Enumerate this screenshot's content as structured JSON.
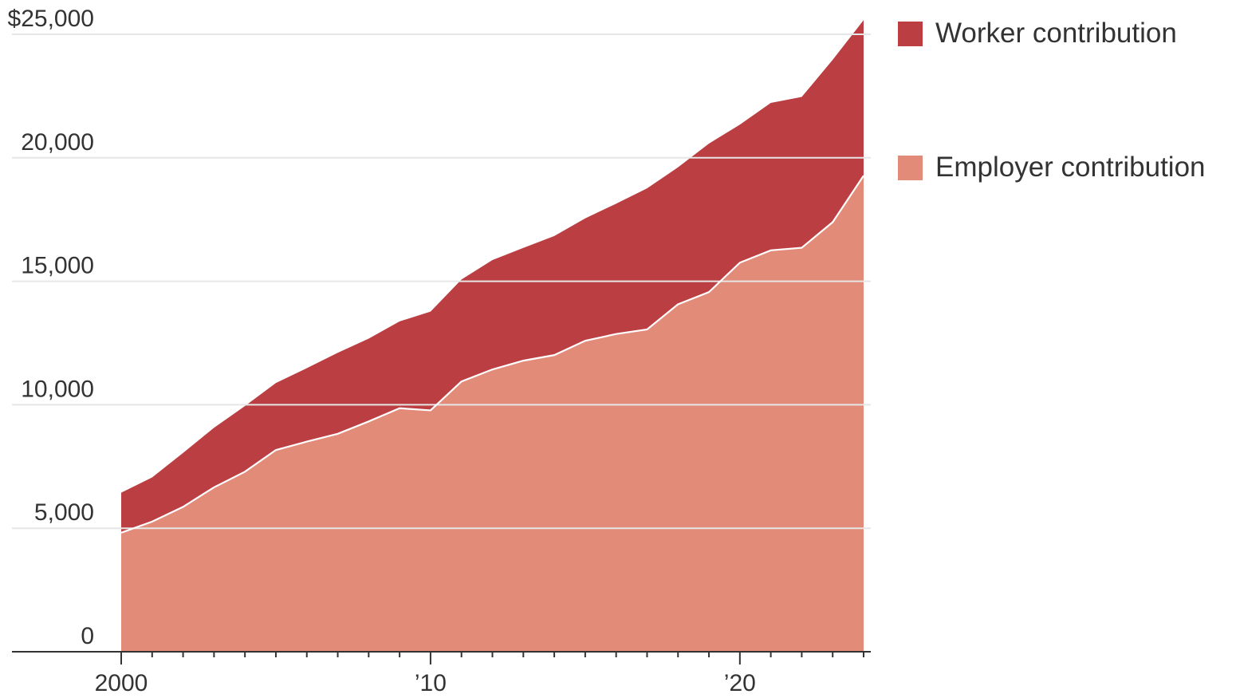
{
  "colors": {
    "worker": "#bb3f42",
    "employer": "#e38b79",
    "grid": "#e6e6e6",
    "axis": "#333333"
  },
  "legend": [
    {
      "label": "Worker contribution",
      "color": "#bb3f42"
    },
    {
      "label": "Employer contribution",
      "color": "#e38b79"
    }
  ],
  "chart_data": {
    "type": "area",
    "stacked": true,
    "x": [
      2000,
      2001,
      2002,
      2003,
      2004,
      2005,
      2006,
      2007,
      2008,
      2009,
      2010,
      2011,
      2012,
      2013,
      2014,
      2015,
      2016,
      2017,
      2018,
      2019,
      2020,
      2021,
      2022,
      2023,
      2024
    ],
    "series": [
      {
        "name": "Employer contribution",
        "values": [
          4819,
          5269,
          5866,
          6657,
          7289,
          8167,
          8508,
          8824,
          9325,
          9860,
          9773,
          10944,
          11429,
          11786,
          12011,
          12591,
          12865,
          13049,
          14069,
          14561,
          15754,
          16253,
          16357,
          17393,
          19276
        ]
      },
      {
        "name": "Worker contribution",
        "values": [
          1619,
          1787,
          2185,
          2412,
          2661,
          2713,
          2973,
          3282,
          3354,
          3515,
          3997,
          4129,
          4430,
          4565,
          4823,
          4955,
          5277,
          5714,
          5547,
          6015,
          5588,
          5969,
          6106,
          6575,
          6296
        ]
      }
    ],
    "y_tick_labels": [
      "0",
      "5,000",
      "10,000",
      "15,000",
      "20,000",
      "$25,000"
    ],
    "y_ticks": [
      0,
      5000,
      10000,
      15000,
      20000,
      25000
    ],
    "x_tick_labels": [
      "2000",
      "’10",
      "’20"
    ],
    "x_ticks": [
      2000,
      2010,
      2020
    ],
    "ylim": [
      0,
      25000
    ],
    "xlim": [
      2000,
      2024
    ],
    "grid": true,
    "legend_position": "right"
  }
}
